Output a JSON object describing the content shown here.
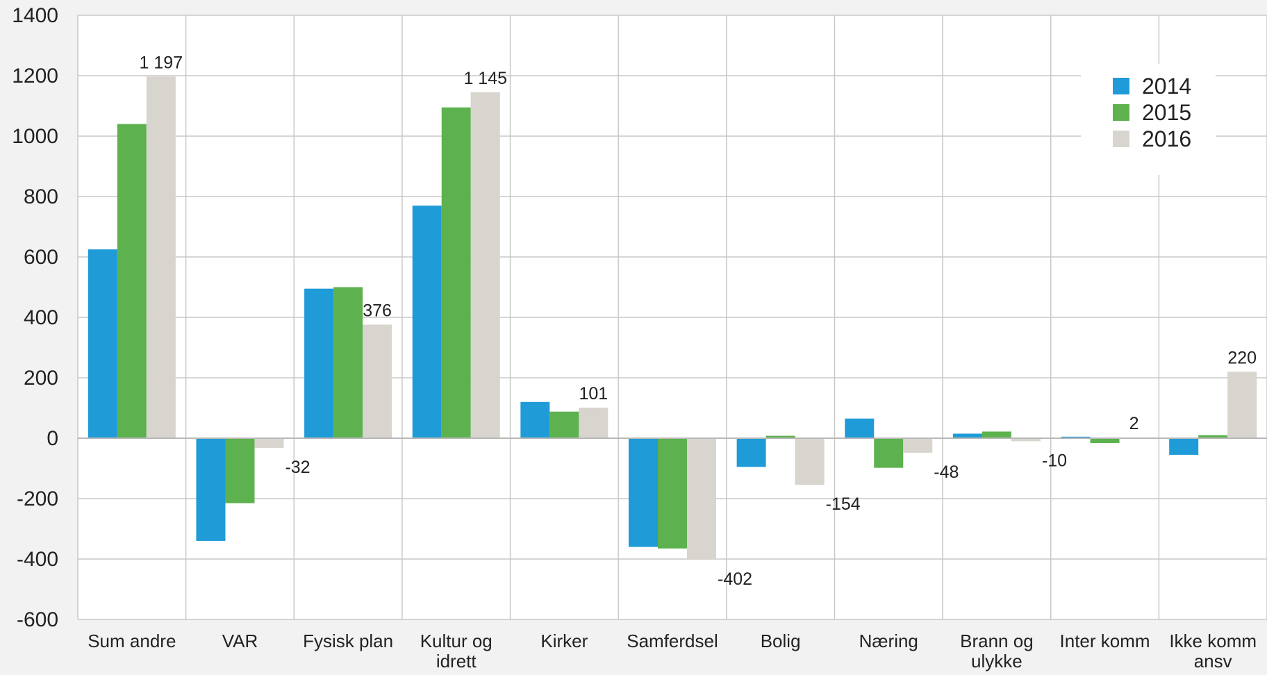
{
  "chart_data": {
    "type": "bar",
    "categories": [
      [
        "Sum andre"
      ],
      [
        "VAR"
      ],
      [
        "Fysisk plan"
      ],
      [
        "Kultur og",
        "idrett"
      ],
      [
        "Kirker"
      ],
      [
        "Samferdsel"
      ],
      [
        "Bolig"
      ],
      [
        "Næring"
      ],
      [
        "Brann og",
        "ulykke"
      ],
      [
        "Inter komm"
      ],
      [
        "Ikke komm",
        "ansv"
      ]
    ],
    "series": [
      {
        "name": "2014",
        "color": "#1f9bd8",
        "values": [
          625,
          -340,
          495,
          770,
          120,
          -360,
          -95,
          65,
          15,
          5,
          -55
        ]
      },
      {
        "name": "2015",
        "color": "#5db14e",
        "values": [
          1040,
          -215,
          500,
          1095,
          88,
          -365,
          8,
          -98,
          22,
          -16,
          10
        ]
      },
      {
        "name": "2016",
        "color": "#d8d4ce",
        "values": [
          1197,
          -32,
          376,
          1145,
          101,
          -402,
          -154,
          -48,
          -10,
          2,
          220
        ]
      }
    ],
    "data_labels": [
      {
        "category": 0,
        "series": 2,
        "text": "1 197"
      },
      {
        "category": 1,
        "series": 2,
        "text": "-32"
      },
      {
        "category": 2,
        "series": 2,
        "text": "376"
      },
      {
        "category": 3,
        "series": 2,
        "text": "1 145"
      },
      {
        "category": 4,
        "series": 2,
        "text": "101"
      },
      {
        "category": 5,
        "series": 2,
        "text": "-402"
      },
      {
        "category": 6,
        "series": 2,
        "text": "-154"
      },
      {
        "category": 7,
        "series": 2,
        "text": "-48"
      },
      {
        "category": 8,
        "series": 2,
        "text": "-10"
      },
      {
        "category": 9,
        "series": 2,
        "text": "2"
      },
      {
        "category": 10,
        "series": 2,
        "text": "220"
      }
    ],
    "y_ticks": [
      1400,
      1200,
      1000,
      800,
      600,
      400,
      200,
      0,
      -200,
      -400,
      -600
    ],
    "ylim": [
      -600,
      1400
    ],
    "title": "",
    "xlabel": "",
    "ylabel": "",
    "grid": true,
    "legend_position": "top-right"
  }
}
